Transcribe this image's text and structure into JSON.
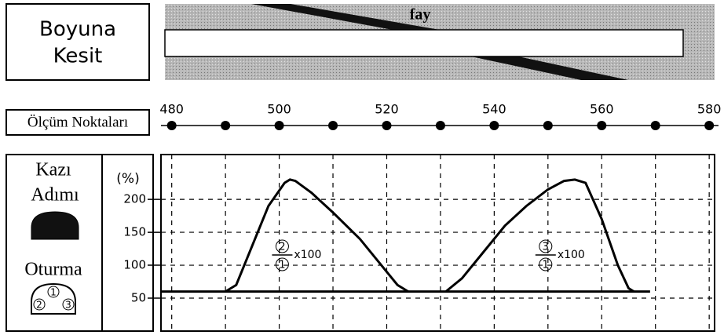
{
  "section_label": [
    "Boyuna",
    "Kesit"
  ],
  "fault_label": "fay",
  "points_label": "Ölçüm Noktaları",
  "legend": {
    "step_label": [
      "Kazı",
      "Adımı"
    ],
    "settlement_label": "Oturma",
    "settlement_icon_numbers": [
      "2",
      "1",
      "3"
    ]
  },
  "chart_data": {
    "type": "line",
    "y_label": "(%)",
    "xlim": [
      478,
      581
    ],
    "ylim": [
      0,
      268
    ],
    "xticks": [
      480,
      500,
      520,
      540,
      560,
      580
    ],
    "points": [
      480,
      490,
      500,
      510,
      520,
      530,
      540,
      550,
      560,
      570,
      580
    ],
    "yticks": [
      50,
      100,
      150,
      200
    ],
    "grid": true,
    "series": [
      {
        "color": "#000000",
        "x": [
          490,
          492,
          495,
          498,
          501,
          502,
          503,
          506,
          510,
          515,
          520,
          522,
          524,
          527,
          531,
          534,
          538,
          542,
          546,
          550,
          553,
          555,
          557,
          560,
          563,
          565,
          566
        ],
        "values": [
          60,
          70,
          130,
          190,
          225,
          230,
          228,
          210,
          180,
          140,
          90,
          70,
          60,
          null,
          60,
          80,
          120,
          160,
          190,
          215,
          228,
          230,
          225,
          170,
          100,
          65,
          60
        ]
      },
      {
        "color": "#000000",
        "x": [
          478,
          569
        ],
        "values": [
          60,
          60
        ]
      }
    ],
    "annotations": [
      {
        "numerator": "2",
        "denominator": "1",
        "text": "x100",
        "x": 501
      },
      {
        "numerator": "3",
        "denominator": "1",
        "text": "x100",
        "x": 550
      }
    ]
  }
}
